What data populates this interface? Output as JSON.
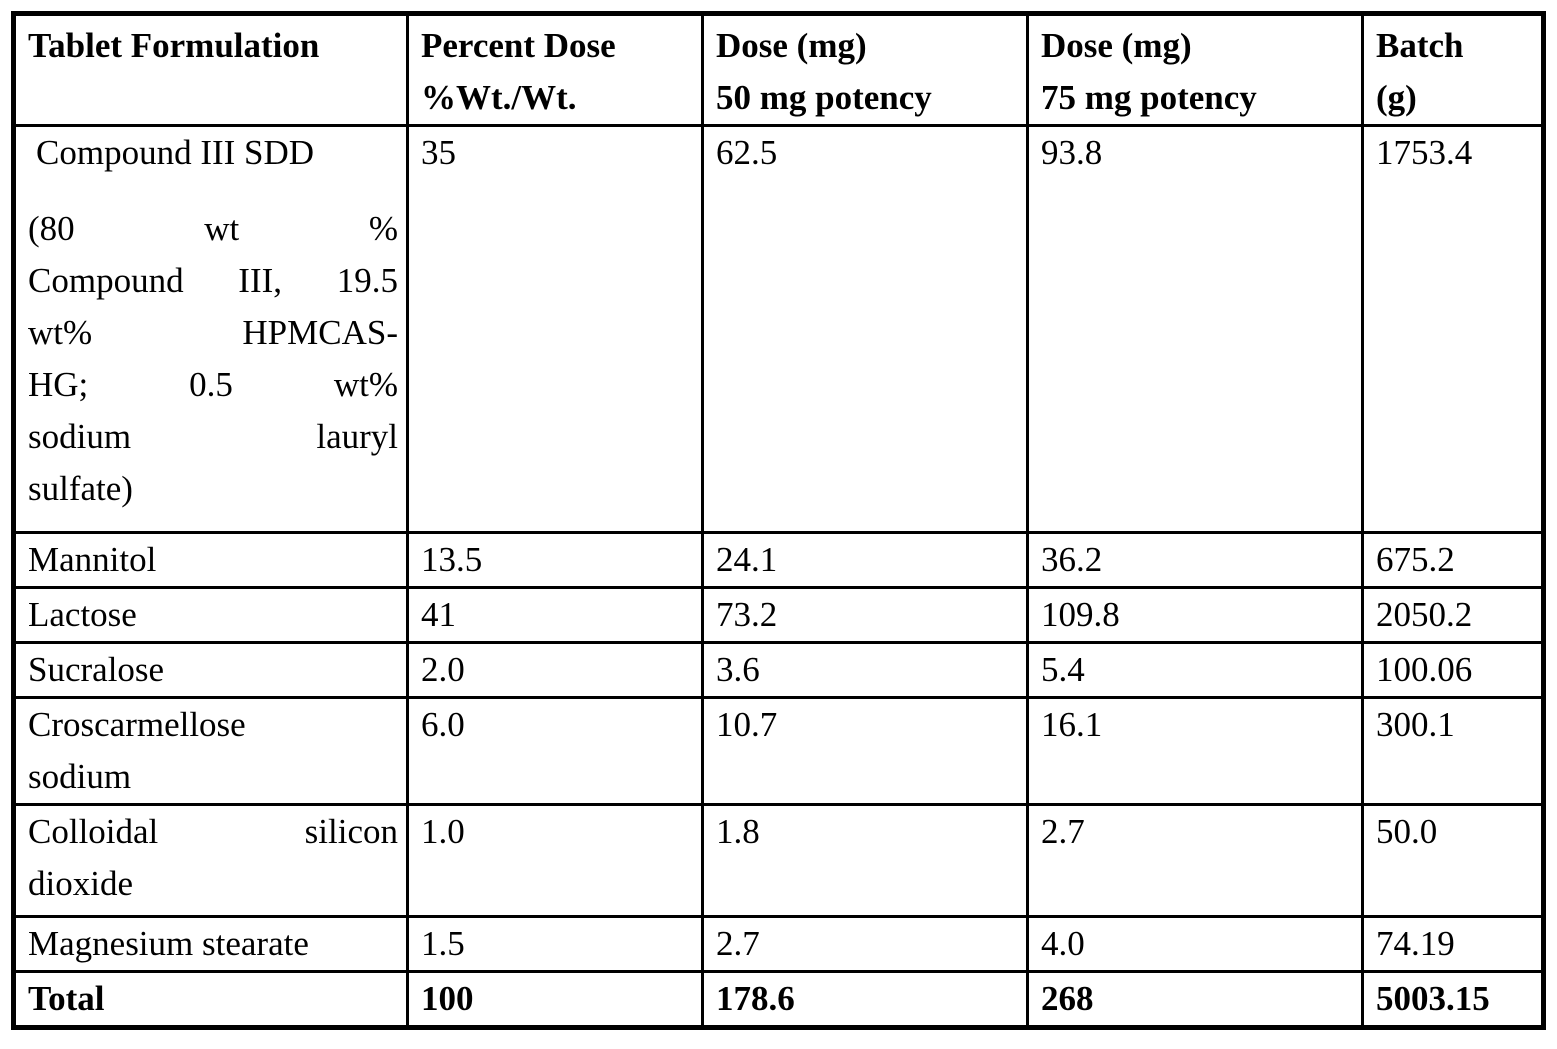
{
  "colors": {
    "background": "#ffffff",
    "text": "#000000",
    "border": "#000000"
  },
  "table": {
    "header": [
      {
        "lines": [
          "Tablet Formulation"
        ]
      },
      {
        "lines": [
          "Percent Dose",
          "%Wt./Wt."
        ]
      },
      {
        "lines": [
          "Dose (mg)",
          "50 mg potency"
        ]
      },
      {
        "lines": [
          "Dose (mg)",
          "75 mg potency"
        ]
      },
      {
        "lines": [
          "Batch",
          "(g)"
        ]
      }
    ],
    "rows": [
      {
        "formulation": [
          {
            "text": "Compound III SDD",
            "justify": false,
            "para_start": false,
            "indent": true
          },
          {
            "text": "(80 wt %",
            "justify": true,
            "para_start": true
          },
          {
            "text": "Compound III, 19.5",
            "justify": true
          },
          {
            "text": "wt% HPMCAS-",
            "justify": true
          },
          {
            "text": "HG; 0.5 wt%",
            "justify": true
          },
          {
            "text": "sodium lauryl",
            "justify": true
          },
          {
            "text": "sulfate)",
            "justify": false
          }
        ],
        "percent_dose": "35",
        "dose_50mg": "62.5",
        "dose_75mg": "93.8",
        "batch_g": "1753.4",
        "bold": false
      },
      {
        "formulation": [
          {
            "text": "Mannitol"
          }
        ],
        "percent_dose": "13.5",
        "dose_50mg": "24.1",
        "dose_75mg": "36.2",
        "batch_g": "675.2",
        "bold": false
      },
      {
        "formulation": [
          {
            "text": "Lactose"
          }
        ],
        "percent_dose": "41",
        "dose_50mg": "73.2",
        "dose_75mg": "109.8",
        "batch_g": "2050.2",
        "bold": false
      },
      {
        "formulation": [
          {
            "text": "Sucralose"
          }
        ],
        "percent_dose": "2.0",
        "dose_50mg": "3.6",
        "dose_75mg": "5.4",
        "batch_g": "100.06",
        "bold": false
      },
      {
        "formulation": [
          {
            "text": "Croscarmellose"
          },
          {
            "text": "sodium"
          }
        ],
        "percent_dose": "6.0",
        "dose_50mg": "10.7",
        "dose_75mg": "16.1",
        "batch_g": "300.1",
        "bold": false
      },
      {
        "formulation": [
          {
            "text": "Colloidal silicon",
            "justify": true
          },
          {
            "text": "dioxide"
          }
        ],
        "percent_dose": "1.0",
        "dose_50mg": "1.8",
        "dose_75mg": "2.7",
        "batch_g": "50.0",
        "bold": false
      },
      {
        "formulation": [
          {
            "text": "Magnesium stearate"
          }
        ],
        "percent_dose": "1.5",
        "dose_50mg": "2.7",
        "dose_75mg": "4.0",
        "batch_g": "74.19",
        "bold": false
      },
      {
        "formulation": [
          {
            "text": "Total"
          }
        ],
        "percent_dose": "100",
        "dose_50mg": "178.6",
        "dose_75mg": "268",
        "batch_g": "5003.15",
        "bold": true
      }
    ]
  }
}
